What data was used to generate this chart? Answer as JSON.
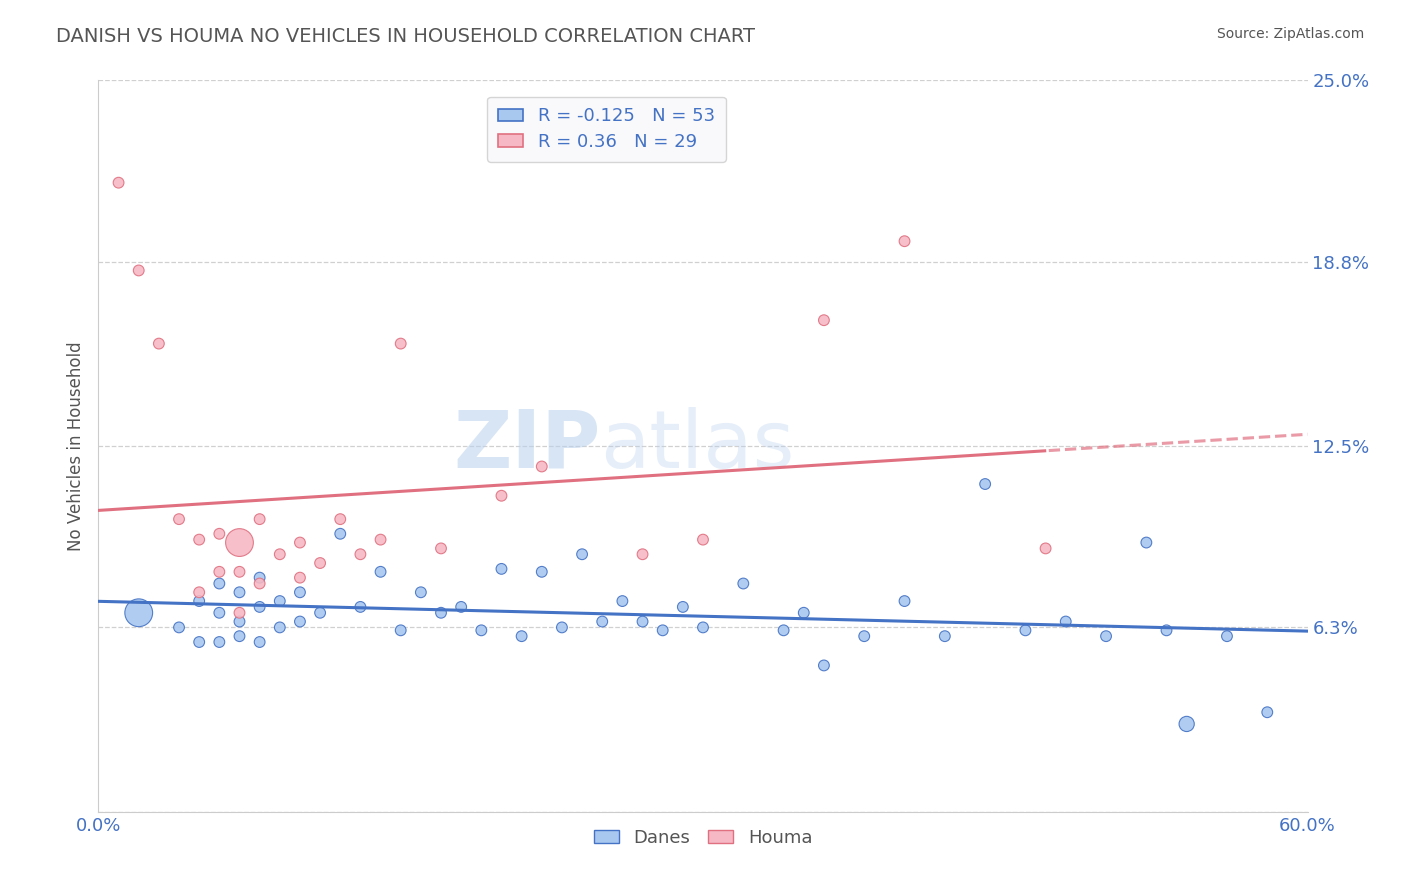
{
  "title": "DANISH VS HOUMA NO VEHICLES IN HOUSEHOLD CORRELATION CHART",
  "source_text": "Source: ZipAtlas.com",
  "ylabel": "No Vehicles in Household",
  "x_min": 0.0,
  "x_max": 0.6,
  "y_min": 0.0,
  "y_max": 0.25,
  "y_ticks": [
    0.25,
    0.188,
    0.125,
    0.063,
    0.0
  ],
  "y_tick_labels": [
    "25.0%",
    "18.8%",
    "12.5%",
    "6.3%",
    ""
  ],
  "danes_color": "#a8c8f0",
  "houma_color": "#f5b8c4",
  "danes_edge_color": "#4472c4",
  "houma_edge_color": "#e07080",
  "danes_line_color": "#4472c4",
  "houma_line_color": "#e07080",
  "danes_R": -0.125,
  "danes_N": 53,
  "houma_R": 0.36,
  "houma_N": 29,
  "legend_labels": [
    "Danes",
    "Houma"
  ],
  "watermark_zip": "ZIP",
  "watermark_atlas": "atlas",
  "danes_scatter_x": [
    0.02,
    0.04,
    0.05,
    0.05,
    0.06,
    0.06,
    0.06,
    0.07,
    0.07,
    0.07,
    0.08,
    0.08,
    0.08,
    0.09,
    0.09,
    0.1,
    0.1,
    0.11,
    0.12,
    0.13,
    0.14,
    0.15,
    0.16,
    0.17,
    0.18,
    0.19,
    0.2,
    0.21,
    0.22,
    0.23,
    0.24,
    0.25,
    0.26,
    0.27,
    0.28,
    0.29,
    0.3,
    0.32,
    0.34,
    0.35,
    0.36,
    0.38,
    0.4,
    0.42,
    0.44,
    0.46,
    0.48,
    0.5,
    0.52,
    0.53,
    0.54,
    0.56,
    0.58
  ],
  "danes_scatter_y": [
    0.068,
    0.063,
    0.072,
    0.058,
    0.078,
    0.068,
    0.058,
    0.075,
    0.065,
    0.06,
    0.08,
    0.07,
    0.058,
    0.072,
    0.063,
    0.075,
    0.065,
    0.068,
    0.095,
    0.07,
    0.082,
    0.062,
    0.075,
    0.068,
    0.07,
    0.062,
    0.083,
    0.06,
    0.082,
    0.063,
    0.088,
    0.065,
    0.072,
    0.065,
    0.062,
    0.07,
    0.063,
    0.078,
    0.062,
    0.068,
    0.05,
    0.06,
    0.072,
    0.06,
    0.112,
    0.062,
    0.065,
    0.06,
    0.092,
    0.062,
    0.03,
    0.06,
    0.034
  ],
  "danes_scatter_sizes": [
    400,
    60,
    60,
    60,
    60,
    60,
    60,
    60,
    60,
    60,
    60,
    60,
    60,
    60,
    60,
    60,
    60,
    60,
    60,
    60,
    60,
    60,
    60,
    60,
    60,
    60,
    60,
    60,
    60,
    60,
    60,
    60,
    60,
    60,
    60,
    60,
    60,
    60,
    60,
    60,
    60,
    60,
    60,
    60,
    60,
    60,
    60,
    60,
    60,
    60,
    120,
    60,
    60
  ],
  "houma_scatter_x": [
    0.01,
    0.02,
    0.03,
    0.04,
    0.05,
    0.05,
    0.06,
    0.06,
    0.07,
    0.07,
    0.07,
    0.08,
    0.08,
    0.09,
    0.1,
    0.1,
    0.11,
    0.12,
    0.13,
    0.14,
    0.15,
    0.17,
    0.2,
    0.22,
    0.27,
    0.3,
    0.36,
    0.4,
    0.47
  ],
  "houma_scatter_y": [
    0.215,
    0.185,
    0.16,
    0.1,
    0.093,
    0.075,
    0.095,
    0.082,
    0.092,
    0.082,
    0.068,
    0.1,
    0.078,
    0.088,
    0.092,
    0.08,
    0.085,
    0.1,
    0.088,
    0.093,
    0.16,
    0.09,
    0.108,
    0.118,
    0.088,
    0.093,
    0.168,
    0.195,
    0.09
  ],
  "houma_scatter_sizes": [
    60,
    60,
    60,
    60,
    60,
    60,
    60,
    60,
    400,
    60,
    60,
    60,
    60,
    60,
    60,
    60,
    60,
    60,
    60,
    60,
    60,
    60,
    60,
    60,
    60,
    60,
    60,
    60,
    60
  ],
  "bg_color": "#ffffff",
  "grid_color": "#d0d0d0",
  "title_color": "#555555",
  "tick_color": "#4472c4",
  "legend_box_color": "#f8f8fc"
}
